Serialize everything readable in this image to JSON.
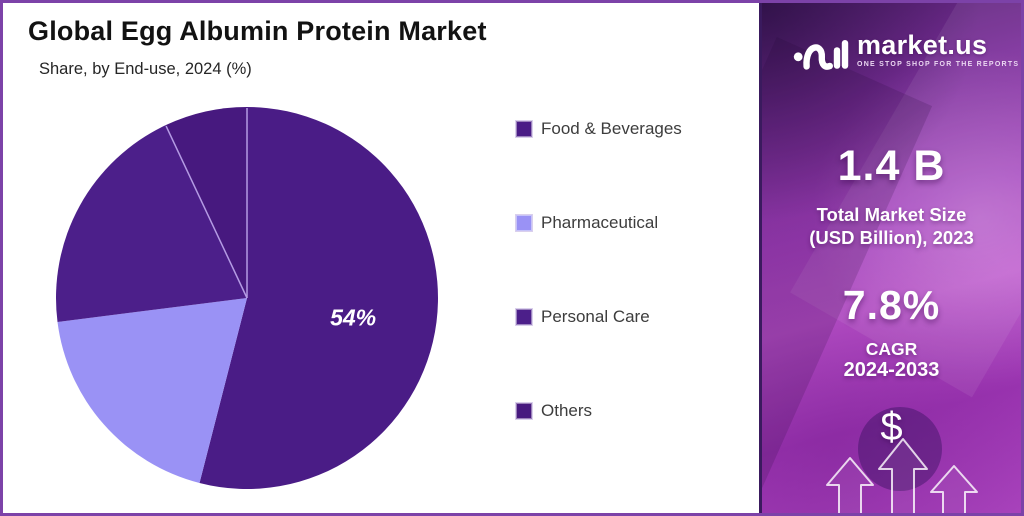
{
  "header": {
    "title": "Global Egg Albumin Protein Market",
    "subtitle": "Share, by End-use, 2024 (%)"
  },
  "chart_data": {
    "type": "pie",
    "title": "Global Egg Albumin Protein Market",
    "subtitle": "Share, by End-use, 2024 (%)",
    "unit": "%",
    "start_angle_deg": 0,
    "direction": "clockwise",
    "legend_position": "right",
    "slices": [
      {
        "label": "Food & Beverages",
        "value": 54,
        "color": "#4A1C86",
        "data_label": "54%",
        "divider_at_start": true
      },
      {
        "label": "Pharmaceutical",
        "value": 19,
        "color": "#9A92F5",
        "data_label": "",
        "divider_at_start": false
      },
      {
        "label": "Personal Care",
        "value": 20,
        "color": "#4C1F8A",
        "data_label": "",
        "divider_at_start": false
      },
      {
        "label": "Others",
        "value": 7,
        "color": "#47197F",
        "data_label": "",
        "divider_at_start": true
      }
    ],
    "divider_color": "#B49BE4",
    "data_label_color": "#FFFFFF"
  },
  "sidebar": {
    "logo": {
      "brand": "market.us",
      "tagline": "ONE STOP SHOP FOR THE REPORTS"
    },
    "stat1": {
      "value": "1.4 B",
      "label_line1": "Total Market Size",
      "label_line2": "(USD Billion), 2023"
    },
    "stat2": {
      "value": "7.8%",
      "label_line1": "CAGR",
      "label_line2": "2024-2033"
    },
    "dollar_symbol": "$",
    "accent_dark": "#4A1C86",
    "accent_magenta": "#B44FC6"
  }
}
